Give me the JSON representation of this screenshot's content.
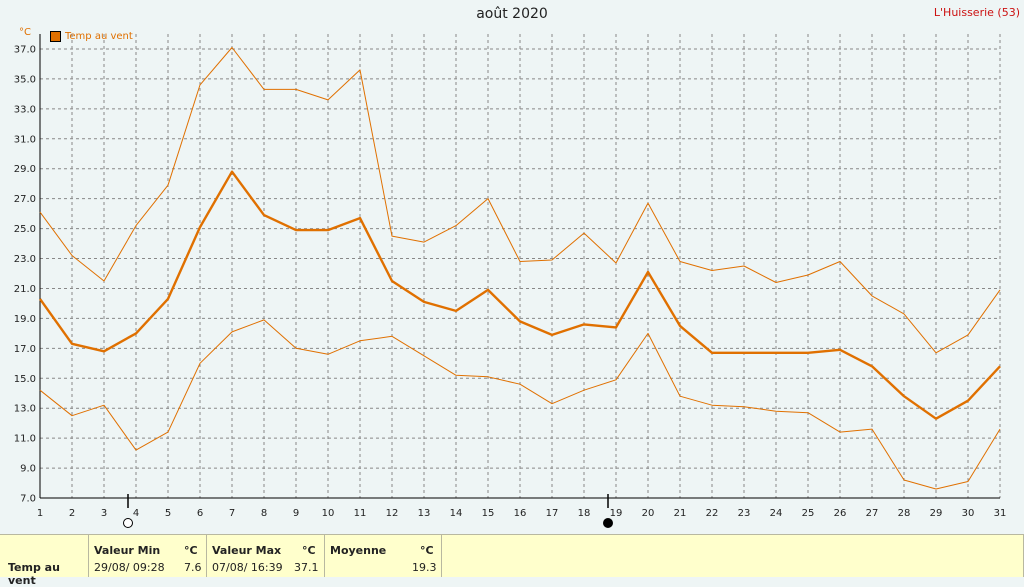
{
  "title": "août 2020",
  "station": "L'Huisserie (53)",
  "unit": "°C",
  "legend_label": "Temp au vent",
  "colors": {
    "series": "#e07000",
    "grid": "#888888",
    "station": "#cc1111"
  },
  "chart_data": {
    "type": "line",
    "x": [
      1,
      2,
      3,
      4,
      5,
      6,
      7,
      8,
      9,
      10,
      11,
      12,
      13,
      14,
      15,
      16,
      17,
      18,
      19,
      20,
      21,
      22,
      23,
      24,
      25,
      26,
      27,
      28,
      29,
      30,
      31
    ],
    "xlim": [
      1,
      31
    ],
    "ylim": [
      7,
      38
    ],
    "yticks": [
      7.0,
      9.0,
      11.0,
      13.0,
      15.0,
      17.0,
      19.0,
      21.0,
      23.0,
      25.0,
      27.0,
      29.0,
      31.0,
      33.0,
      35.0,
      37.0
    ],
    "grid": true,
    "legend": "top-left",
    "series": [
      {
        "name": "Temp au vent",
        "role": "max",
        "values": [
          26.1,
          23.2,
          21.5,
          25.2,
          27.9,
          34.6,
          37.1,
          34.3,
          34.3,
          33.6,
          35.6,
          24.5,
          24.1,
          25.2,
          27.0,
          22.8,
          22.9,
          24.7,
          22.7,
          26.7,
          22.8,
          22.2,
          22.5,
          21.4,
          21.9,
          22.8,
          20.5,
          19.3,
          16.7,
          17.9,
          20.9
        ]
      },
      {
        "name": "Temp au vent",
        "role": "mean",
        "values": [
          20.3,
          17.3,
          16.8,
          18.0,
          20.3,
          25.1,
          28.8,
          25.9,
          24.9,
          24.9,
          25.7,
          21.5,
          20.1,
          19.5,
          20.9,
          18.8,
          17.9,
          18.6,
          18.4,
          22.1,
          18.5,
          16.7,
          16.7,
          16.7,
          16.7,
          16.9,
          15.8,
          13.8,
          12.3,
          13.5,
          15.8
        ]
      },
      {
        "name": "Temp au vent",
        "role": "min",
        "values": [
          14.2,
          12.5,
          13.2,
          10.2,
          11.4,
          16.0,
          18.1,
          18.9,
          17.0,
          16.6,
          17.5,
          17.8,
          16.5,
          15.2,
          15.1,
          14.6,
          13.3,
          14.2,
          14.9,
          18.0,
          13.8,
          13.2,
          13.1,
          12.8,
          12.7,
          11.4,
          11.6,
          8.2,
          7.6,
          8.1,
          11.6
        ]
      }
    ],
    "moon_phases": [
      {
        "day": 4,
        "phase": "new"
      },
      {
        "day": 19,
        "phase": "full"
      }
    ]
  },
  "footer": {
    "series_name": "Temp au vent",
    "min_label": "Valeur Min",
    "min_unit": "°C",
    "min_when": "29/08/  09:28",
    "min_value": "7.6",
    "max_label": "Valeur Max",
    "max_unit": "°C",
    "max_when": "07/08/  16:39",
    "max_value": "37.1",
    "mean_label": "Moyenne",
    "mean_unit": "°C",
    "mean_value": "19.3"
  }
}
